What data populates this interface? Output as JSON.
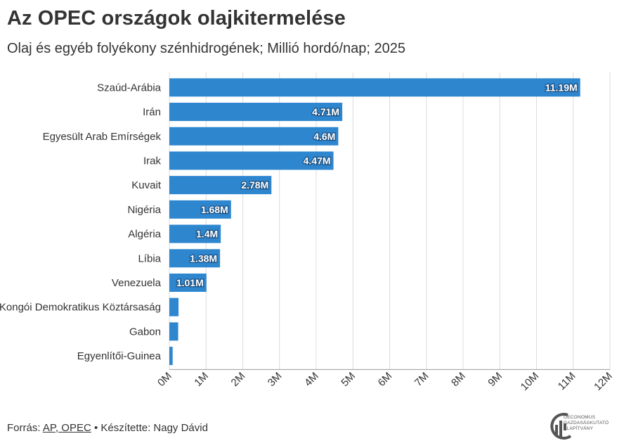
{
  "title": "Az OPEC országok olajkitermelése",
  "subtitle": "Olaj és egyéb folyékony szénhidrogének; Millió hordó/nap; 2025",
  "footer": {
    "source_prefix": "Forrás: ",
    "source_link": "AP, OPEC",
    "separator": " • ",
    "credit": "Készítette: Nagy Dávid"
  },
  "logo": {
    "line1": "OECONOMUS",
    "line2": "GAZDASÁGKUTATÓ",
    "line3": "ALAPÍTVÁNY"
  },
  "colors": {
    "bar": "#2e86cf",
    "grid": "#dcdcdc",
    "text": "#333333"
  },
  "chart_data": {
    "type": "bar",
    "orientation": "horizontal",
    "categories": [
      "Szaúd-Arábia",
      "Irán",
      "Egyesült Arab Emírségek",
      "Irak",
      "Kuvait",
      "Nigéria",
      "Algéria",
      "Líbia",
      "Venezuela",
      "Kongói Demokratikus Köztársaság",
      "Gabon",
      "Egyenlítői-Guinea"
    ],
    "values": [
      11.19,
      4.71,
      4.6,
      4.47,
      2.78,
      1.68,
      1.4,
      1.38,
      1.01,
      0.25,
      0.24,
      0.09
    ],
    "data_labels": [
      "11.19M",
      "4.71M",
      "4.6M",
      "4.47M",
      "2.78M",
      "1.68M",
      "1.4M",
      "1.38M",
      "1.01M",
      "",
      "",
      ""
    ],
    "x_ticks": [
      0,
      1,
      2,
      3,
      4,
      5,
      6,
      7,
      8,
      9,
      10,
      11,
      12
    ],
    "x_tick_labels": [
      "0M",
      "1M",
      "2M",
      "3M",
      "4M",
      "5M",
      "6M",
      "7M",
      "8M",
      "9M",
      "10M",
      "11M",
      "12M"
    ],
    "xlim": [
      0,
      12
    ],
    "grid": true,
    "legend": "none"
  }
}
